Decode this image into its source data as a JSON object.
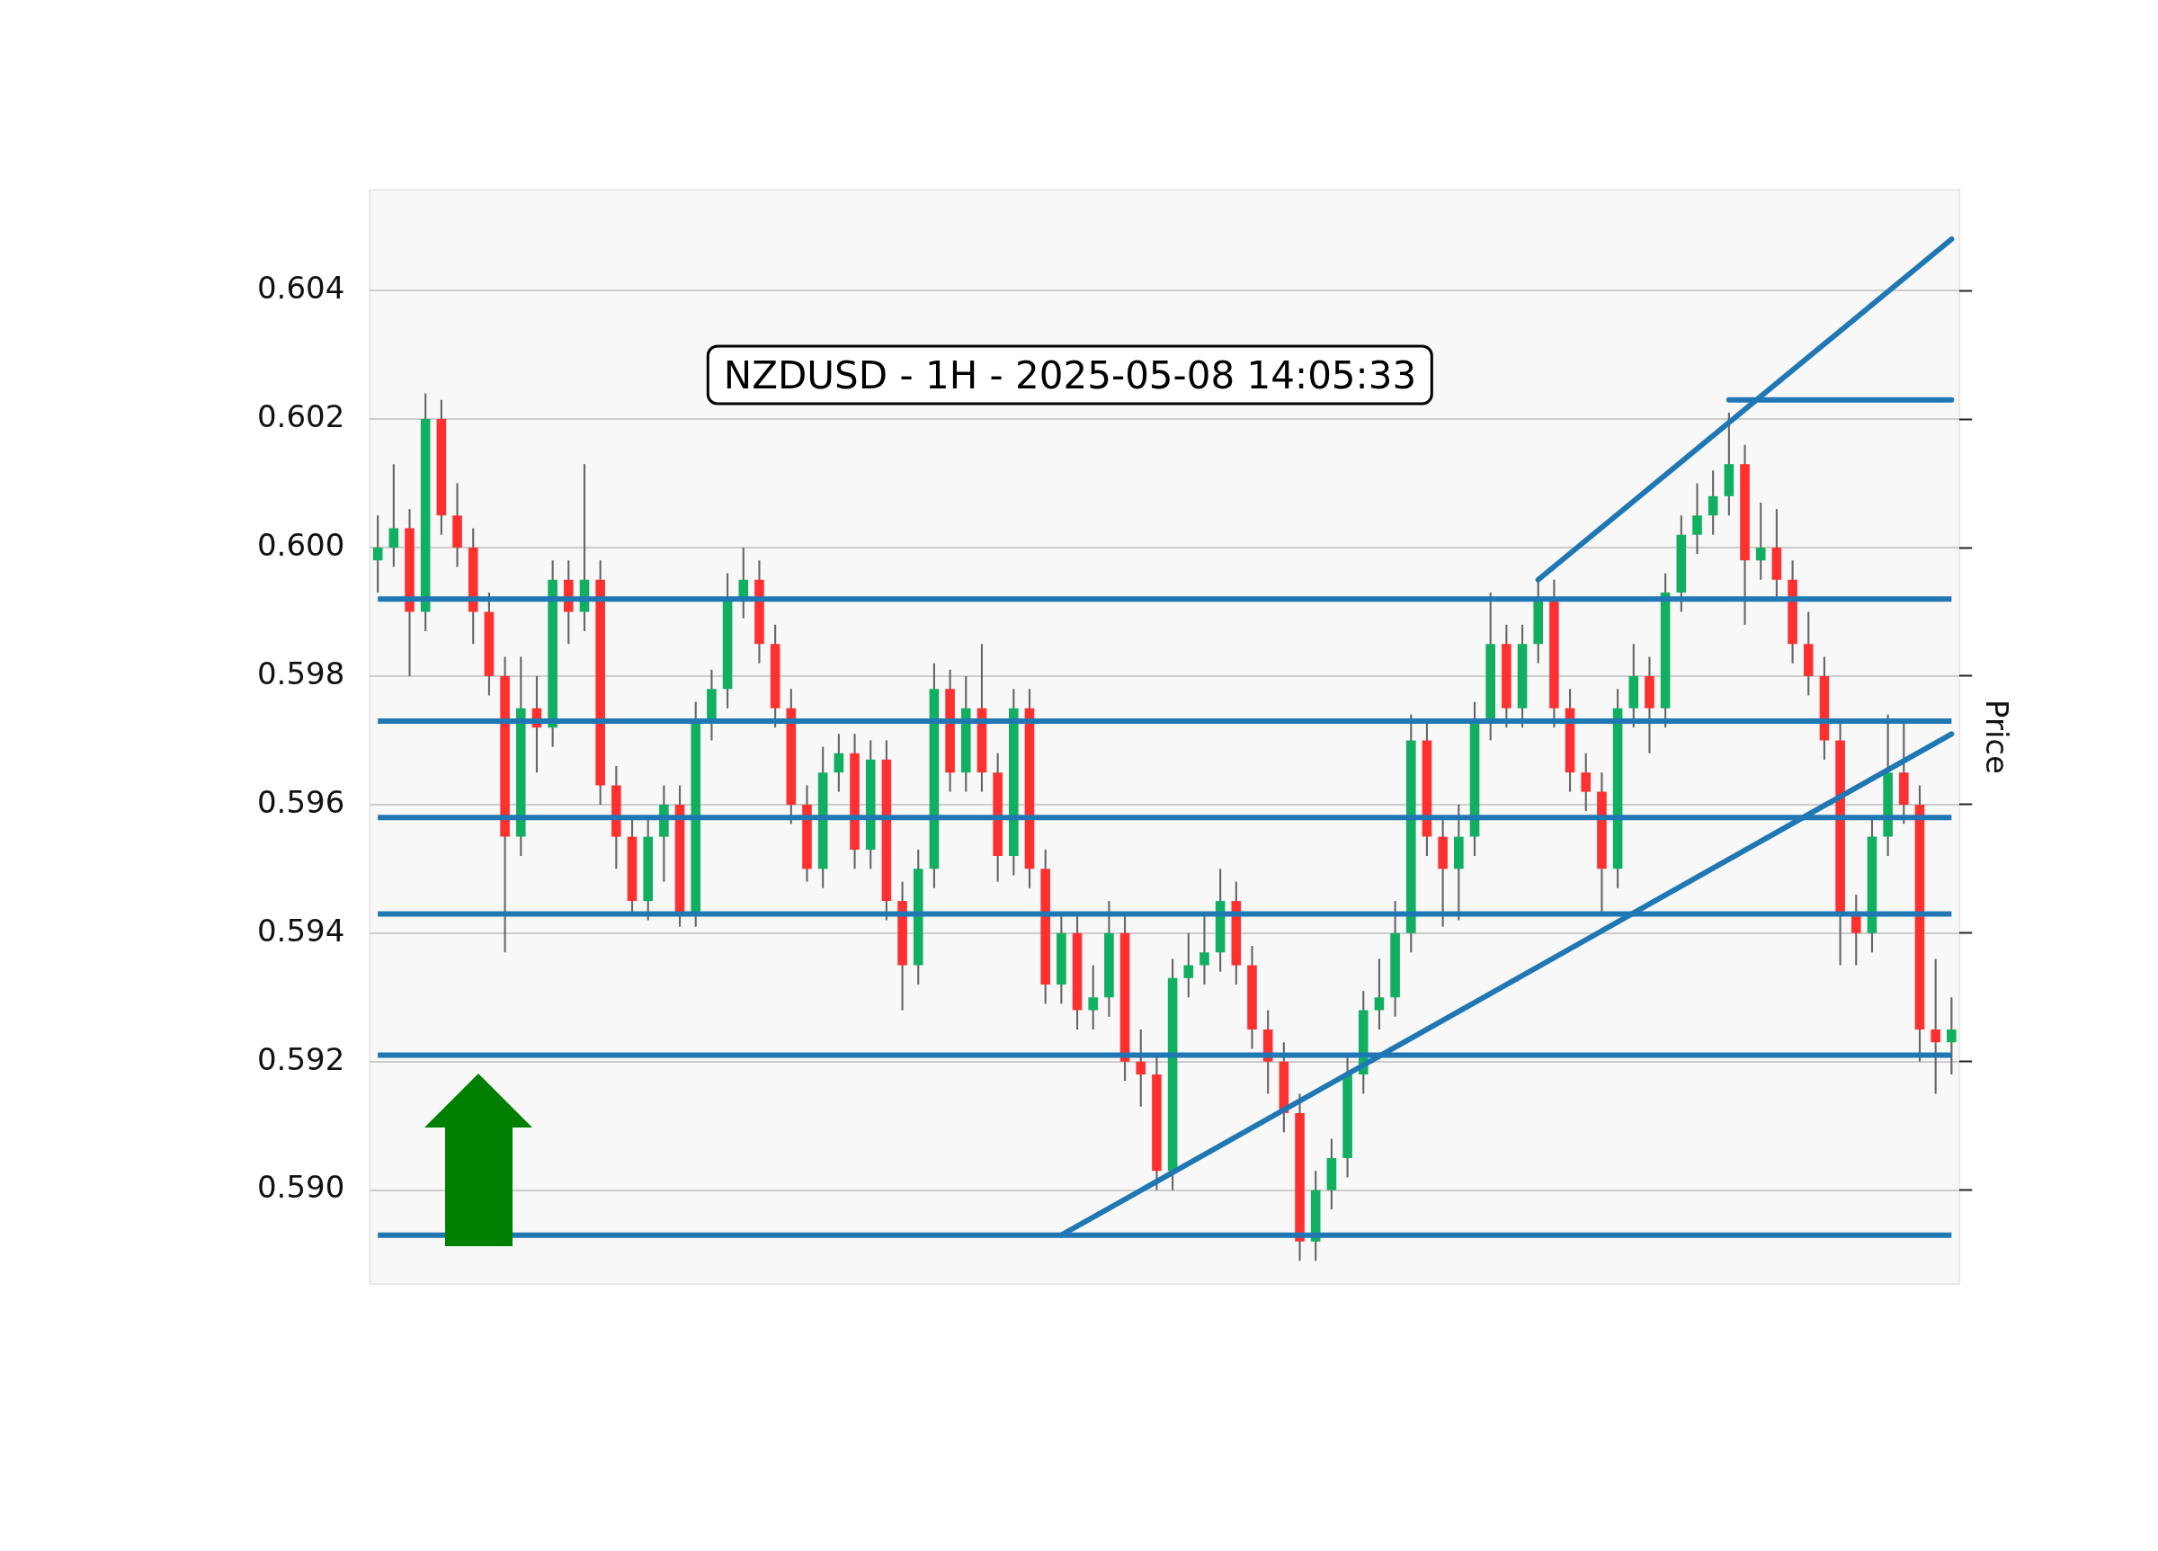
{
  "chart_data": {
    "type": "candlestick",
    "title": "NZDUSD - 1H - 2025-05-08 14:05:33",
    "ylabel": "Price",
    "categories": [
      null,
      null,
      null,
      null,
      null,
      null,
      null,
      null,
      null,
      null,
      null,
      null,
      null,
      null,
      null,
      null,
      null,
      null,
      null,
      null,
      null,
      null,
      null,
      null,
      null,
      null,
      null,
      null,
      null,
      null,
      null,
      null,
      null,
      null,
      null,
      null,
      null,
      null,
      null,
      null,
      null,
      null,
      null,
      null,
      null,
      null,
      null,
      null,
      null,
      null,
      null,
      null,
      null,
      null,
      null,
      null,
      null,
      null,
      null,
      null,
      null,
      null,
      null,
      null,
      null,
      null,
      null,
      null,
      null,
      null,
      null,
      null,
      null,
      null,
      null,
      null,
      null,
      null,
      null,
      null,
      null,
      null,
      null,
      null,
      null,
      null,
      null,
      null,
      null,
      null,
      null,
      null,
      null,
      null,
      null,
      null,
      null,
      null,
      null,
      null
    ],
    "ohlc": [
      [
        0.5998,
        0.6005,
        0.5993,
        0.6
      ],
      [
        0.6,
        0.6013,
        0.5997,
        0.6003
      ],
      [
        0.6003,
        0.6006,
        0.598,
        0.599
      ],
      [
        0.599,
        0.6024,
        0.5987,
        0.602
      ],
      [
        0.602,
        0.6023,
        0.6002,
        0.6005
      ],
      [
        0.6005,
        0.601,
        0.5997,
        0.6
      ],
      [
        0.6,
        0.6003,
        0.5985,
        0.599
      ],
      [
        0.599,
        0.5993,
        0.5977,
        0.598
      ],
      [
        0.598,
        0.5983,
        0.5937,
        0.5955
      ],
      [
        0.5955,
        0.5983,
        0.5952,
        0.5975
      ],
      [
        0.5975,
        0.598,
        0.5965,
        0.5972
      ],
      [
        0.5972,
        0.5998,
        0.5969,
        0.5995
      ],
      [
        0.5995,
        0.5998,
        0.5985,
        0.599
      ],
      [
        0.599,
        0.6013,
        0.5987,
        0.5995
      ],
      [
        0.5995,
        0.5998,
        0.596,
        0.5963
      ],
      [
        0.5963,
        0.5966,
        0.595,
        0.5955
      ],
      [
        0.5955,
        0.5958,
        0.5943,
        0.5945
      ],
      [
        0.5945,
        0.5958,
        0.5942,
        0.5955
      ],
      [
        0.5955,
        0.5963,
        0.5948,
        0.596
      ],
      [
        0.596,
        0.5963,
        0.5941,
        0.5943
      ],
      [
        0.5943,
        0.5976,
        0.5941,
        0.5973
      ],
      [
        0.5973,
        0.5981,
        0.597,
        0.5978
      ],
      [
        0.5978,
        0.5996,
        0.5975,
        0.5992
      ],
      [
        0.5992,
        0.6,
        0.5989,
        0.5995
      ],
      [
        0.5995,
        0.5998,
        0.5982,
        0.5985
      ],
      [
        0.5985,
        0.5988,
        0.5972,
        0.5975
      ],
      [
        0.5975,
        0.5978,
        0.5957,
        0.596
      ],
      [
        0.596,
        0.5963,
        0.5948,
        0.595
      ],
      [
        0.595,
        0.5969,
        0.5947,
        0.5965
      ],
      [
        0.5965,
        0.5971,
        0.5962,
        0.5968
      ],
      [
        0.5968,
        0.5971,
        0.595,
        0.5953
      ],
      [
        0.5953,
        0.597,
        0.595,
        0.5967
      ],
      [
        0.5967,
        0.597,
        0.5942,
        0.5945
      ],
      [
        0.5945,
        0.5948,
        0.5928,
        0.5935
      ],
      [
        0.5935,
        0.5953,
        0.5932,
        0.595
      ],
      [
        0.595,
        0.5982,
        0.5947,
        0.5978
      ],
      [
        0.5978,
        0.5981,
        0.5962,
        0.5965
      ],
      [
        0.5965,
        0.598,
        0.5962,
        0.5975
      ],
      [
        0.5975,
        0.5985,
        0.5962,
        0.5965
      ],
      [
        0.5965,
        0.5968,
        0.5948,
        0.5952
      ],
      [
        0.5952,
        0.5978,
        0.5949,
        0.5975
      ],
      [
        0.5975,
        0.5978,
        0.5947,
        0.595
      ],
      [
        0.595,
        0.5953,
        0.5929,
        0.5932
      ],
      [
        0.5932,
        0.5943,
        0.5929,
        0.594
      ],
      [
        0.594,
        0.5943,
        0.5925,
        0.5928
      ],
      [
        0.5928,
        0.5935,
        0.5925,
        0.593
      ],
      [
        0.593,
        0.5945,
        0.5927,
        0.594
      ],
      [
        0.594,
        0.5943,
        0.5917,
        0.592
      ],
      [
        0.592,
        0.5925,
        0.5913,
        0.5918
      ],
      [
        0.5918,
        0.5921,
        0.59,
        0.5903
      ],
      [
        0.5903,
        0.5936,
        0.59,
        0.5933
      ],
      [
        0.5933,
        0.594,
        0.593,
        0.5935
      ],
      [
        0.5935,
        0.5943,
        0.5932,
        0.5937
      ],
      [
        0.5937,
        0.595,
        0.5934,
        0.5945
      ],
      [
        0.5945,
        0.5948,
        0.5932,
        0.5935
      ],
      [
        0.5935,
        0.5938,
        0.5922,
        0.5925
      ],
      [
        0.5925,
        0.5928,
        0.5915,
        0.592
      ],
      [
        0.592,
        0.5923,
        0.5909,
        0.5912
      ],
      [
        0.5912,
        0.5915,
        0.5889,
        0.5892
      ],
      [
        0.5892,
        0.5903,
        0.5889,
        0.59
      ],
      [
        0.59,
        0.5908,
        0.5897,
        0.5905
      ],
      [
        0.5905,
        0.5921,
        0.5902,
        0.5918
      ],
      [
        0.5918,
        0.5931,
        0.5915,
        0.5928
      ],
      [
        0.5928,
        0.5936,
        0.5925,
        0.593
      ],
      [
        0.593,
        0.5945,
        0.5927,
        0.594
      ],
      [
        0.594,
        0.5974,
        0.5937,
        0.597
      ],
      [
        0.597,
        0.5973,
        0.5952,
        0.5955
      ],
      [
        0.5955,
        0.5958,
        0.5941,
        0.595
      ],
      [
        0.595,
        0.596,
        0.5942,
        0.5955
      ],
      [
        0.5955,
        0.5976,
        0.5952,
        0.5973
      ],
      [
        0.5973,
        0.5993,
        0.597,
        0.5985
      ],
      [
        0.5985,
        0.5988,
        0.5972,
        0.5975
      ],
      [
        0.5975,
        0.5988,
        0.5972,
        0.5985
      ],
      [
        0.5985,
        0.5995,
        0.5982,
        0.5992
      ],
      [
        0.5992,
        0.5995,
        0.5972,
        0.5975
      ],
      [
        0.5975,
        0.5978,
        0.5962,
        0.5965
      ],
      [
        0.5965,
        0.5968,
        0.5959,
        0.5962
      ],
      [
        0.5962,
        0.5965,
        0.5943,
        0.595
      ],
      [
        0.595,
        0.5978,
        0.5947,
        0.5975
      ],
      [
        0.5975,
        0.5985,
        0.5972,
        0.598
      ],
      [
        0.598,
        0.5983,
        0.5968,
        0.5975
      ],
      [
        0.5975,
        0.5996,
        0.5972,
        0.5993
      ],
      [
        0.5993,
        0.6005,
        0.599,
        0.6002
      ],
      [
        0.6002,
        0.601,
        0.5999,
        0.6005
      ],
      [
        0.6005,
        0.6012,
        0.6002,
        0.6008
      ],
      [
        0.6008,
        0.6021,
        0.6005,
        0.6013
      ],
      [
        0.6013,
        0.6016,
        0.5988,
        0.5998
      ],
      [
        0.5998,
        0.6007,
        0.5995,
        0.6
      ],
      [
        0.6,
        0.6006,
        0.5992,
        0.5995
      ],
      [
        0.5995,
        0.5998,
        0.5982,
        0.5985
      ],
      [
        0.5985,
        0.599,
        0.5977,
        0.598
      ],
      [
        0.598,
        0.5983,
        0.5967,
        0.597
      ],
      [
        0.597,
        0.5973,
        0.5935,
        0.5943
      ],
      [
        0.5943,
        0.5946,
        0.5935,
        0.594
      ],
      [
        0.594,
        0.5958,
        0.5937,
        0.5955
      ],
      [
        0.5955,
        0.5974,
        0.5952,
        0.5965
      ],
      [
        0.5965,
        0.5973,
        0.5957,
        0.596
      ],
      [
        0.596,
        0.5963,
        0.592,
        0.5925
      ],
      [
        0.5925,
        0.5936,
        0.5915,
        0.5923
      ],
      [
        0.5923,
        0.593,
        0.5918,
        0.5925
      ]
    ],
    "series": [
      {
        "type": "line",
        "color": "#1f77b4",
        "values": [
          null,
          null,
          null,
          null,
          null,
          null,
          null,
          null,
          null,
          null,
          null,
          null,
          null,
          null,
          null,
          null,
          null,
          null,
          null,
          null,
          null,
          null,
          null,
          null,
          null,
          null,
          null,
          null,
          null,
          null,
          null,
          null,
          null,
          null,
          null,
          null,
          null,
          null,
          null,
          null,
          null,
          null,
          null,
          0.5893,
          null,
          null,
          null,
          null,
          null,
          null,
          null,
          null,
          null,
          null,
          null,
          null,
          null,
          null,
          null,
          null,
          null,
          null,
          null,
          null,
          null,
          null,
          null,
          null,
          null,
          null,
          null,
          null,
          null,
          null,
          null,
          null,
          null,
          null,
          null,
          null,
          null,
          null,
          null,
          null,
          null,
          null,
          null,
          null,
          null,
          null,
          null,
          null,
          null,
          null,
          null,
          null,
          null,
          null,
          null,
          0.5971
        ]
      },
      {
        "type": "line",
        "color": "#1f77b4",
        "values": [
          null,
          null,
          null,
          null,
          null,
          null,
          null,
          null,
          null,
          null,
          null,
          null,
          null,
          null,
          null,
          null,
          null,
          null,
          null,
          null,
          null,
          null,
          null,
          null,
          null,
          null,
          null,
          null,
          null,
          null,
          null,
          null,
          null,
          null,
          null,
          null,
          null,
          null,
          null,
          null,
          null,
          null,
          null,
          null,
          null,
          null,
          null,
          null,
          null,
          null,
          null,
          null,
          null,
          null,
          null,
          null,
          null,
          null,
          null,
          null,
          null,
          null,
          null,
          null,
          null,
          null,
          null,
          null,
          null,
          null,
          null,
          null,
          null,
          0.5995,
          null,
          null,
          null,
          null,
          null,
          null,
          null,
          null,
          null,
          null,
          null,
          null,
          null,
          null,
          null,
          null,
          null,
          null,
          null,
          null,
          null,
          null,
          null,
          null,
          null,
          0.6048
        ]
      },
      {
        "type": "line",
        "color": "#1f77b4",
        "values": [
          null,
          null,
          null,
          null,
          null,
          null,
          null,
          null,
          null,
          null,
          null,
          null,
          null,
          null,
          null,
          null,
          null,
          null,
          null,
          null,
          null,
          null,
          null,
          null,
          null,
          null,
          null,
          null,
          null,
          null,
          null,
          null,
          null,
          null,
          null,
          null,
          null,
          null,
          null,
          null,
          null,
          null,
          null,
          null,
          null,
          null,
          null,
          null,
          null,
          null,
          null,
          null,
          null,
          null,
          null,
          null,
          null,
          null,
          null,
          null,
          null,
          null,
          null,
          null,
          null,
          null,
          null,
          null,
          null,
          null,
          null,
          null,
          null,
          null,
          null,
          null,
          null,
          null,
          null,
          null,
          null,
          null,
          null,
          null,
          null,
          0.6023,
          null,
          null,
          null,
          null,
          null,
          null,
          null,
          null,
          null,
          null,
          null,
          null,
          null,
          0.6023
        ]
      }
    ],
    "ref_lines": [
      {
        "axis": "y",
        "value": 0.5992,
        "color": "#1f77b4"
      },
      {
        "axis": "y",
        "value": 0.5973,
        "color": "#1f77b4"
      },
      {
        "axis": "y",
        "value": 0.5958,
        "color": "#1f77b4"
      },
      {
        "axis": "y",
        "value": 0.5943,
        "color": "#1f77b4"
      },
      {
        "axis": "y",
        "value": 0.5921,
        "color": "#1f77b4"
      },
      {
        "axis": "y",
        "value": 0.5893,
        "color": "#1f77b4"
      }
    ],
    "ylim": [
      0.58854,
      0.60557
    ],
    "yticks": [
      {
        "value": 0.59,
        "label": "0.590"
      },
      {
        "value": 0.592,
        "label": "0.592"
      },
      {
        "value": 0.594,
        "label": "0.594"
      },
      {
        "value": 0.596,
        "label": "0.596"
      },
      {
        "value": 0.598,
        "label": "0.598"
      },
      {
        "value": 0.6,
        "label": "0.600"
      },
      {
        "value": 0.602,
        "label": "0.602"
      },
      {
        "value": 0.604,
        "label": "0.604"
      }
    ],
    "grid": "y",
    "legend": false,
    "marker": "none"
  }
}
